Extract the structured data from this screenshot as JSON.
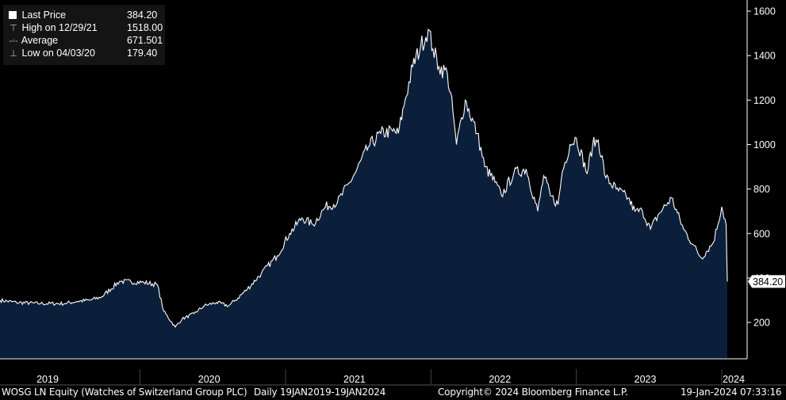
{
  "chart_data": {
    "type": "area",
    "ylim": [
      40,
      1650
    ],
    "x_range": [
      "2019-01-19",
      "2024-01-19"
    ],
    "y_ticks": [
      200,
      400,
      600,
      800,
      1000,
      1200,
      1400,
      1600
    ],
    "x_year_labels": [
      "2019",
      "2020",
      "2021",
      "2022",
      "2023",
      "2024"
    ],
    "series": [
      {
        "name": "Last Price",
        "dates": [
          "2019-01-19",
          "2019-03-01",
          "2019-05-01",
          "2019-07-01",
          "2019-08-01",
          "2019-09-01",
          "2019-10-01",
          "2019-11-15",
          "2020-01-15",
          "2020-02-18",
          "2020-03-05",
          "2020-04-03",
          "2020-04-20",
          "2020-05-20",
          "2020-06-15",
          "2020-07-15",
          "2020-08-15",
          "2020-09-01",
          "2020-10-01",
          "2020-11-05",
          "2020-12-15",
          "2021-01-15",
          "2021-02-15",
          "2021-03-15",
          "2021-04-15",
          "2021-05-15",
          "2021-06-15",
          "2021-07-01",
          "2021-08-01",
          "2021-09-01",
          "2021-10-01",
          "2021-10-15",
          "2021-11-01",
          "2021-11-20",
          "2021-12-10",
          "2021-12-29",
          "2022-01-10",
          "2022-01-25",
          "2022-02-15",
          "2022-03-01",
          "2022-03-10",
          "2022-04-01",
          "2022-05-01",
          "2022-05-20",
          "2022-06-15",
          "2022-07-01",
          "2022-08-01",
          "2022-09-01",
          "2022-09-30",
          "2022-10-15",
          "2022-11-01",
          "2022-11-20",
          "2022-12-01",
          "2022-12-20",
          "2023-01-05",
          "2023-02-01",
          "2023-02-15",
          "2023-03-01",
          "2023-03-20",
          "2023-04-15",
          "2023-05-15",
          "2023-06-01",
          "2023-06-20",
          "2023-07-10",
          "2023-08-01",
          "2023-09-01",
          "2023-10-01",
          "2023-10-25",
          "2023-11-15",
          "2023-12-15",
          "2024-01-05",
          "2024-01-16",
          "2024-01-19"
        ],
        "values": [
          300,
          290,
          285,
          285,
          295,
          300,
          315,
          385,
          380,
          370,
          250,
          179.4,
          215,
          240,
          275,
          290,
          275,
          300,
          350,
          420,
          500,
          600,
          670,
          640,
          720,
          740,
          830,
          880,
          990,
          1050,
          1060,
          1050,
          1200,
          1350,
          1440,
          1518,
          1430,
          1350,
          1320,
          1150,
          1000,
          1200,
          1050,
          900,
          830,
          770,
          870,
          890,
          700,
          860,
          770,
          730,
          880,
          1000,
          1030,
          870,
          1000,
          1020,
          850,
          800,
          760,
          700,
          700,
          620,
          690,
          760,
          620,
          550,
          490,
          560,
          720,
          640,
          384.2
        ]
      }
    ],
    "last_price_label": "384.20",
    "colors": {
      "area": "#0c1f3a",
      "line": "#ffffff",
      "background": "#000000",
      "axis": "#ffffff",
      "year_divider": "#333333"
    }
  },
  "legend": {
    "rows": [
      {
        "label": "Last Price",
        "value": "384.20",
        "icon": "square-icon"
      },
      {
        "label": "High on 12/29/21",
        "value": "1518.00",
        "icon": "high-marker-icon"
      },
      {
        "label": "Average",
        "value": "671.501",
        "icon": "average-marker-icon"
      },
      {
        "label": "Low on 04/03/20",
        "value": "179.40",
        "icon": "low-marker-icon"
      }
    ]
  },
  "footer": {
    "ticker": "WOSG LN Equity (Watches of Switzerland Group PLC)",
    "range": "Daily 19JAN2019-19JAN2024",
    "copyright": "Copyright© 2024 Bloomberg Finance L.P.",
    "timestamp": "19-Jan-2024 07:33:16"
  }
}
